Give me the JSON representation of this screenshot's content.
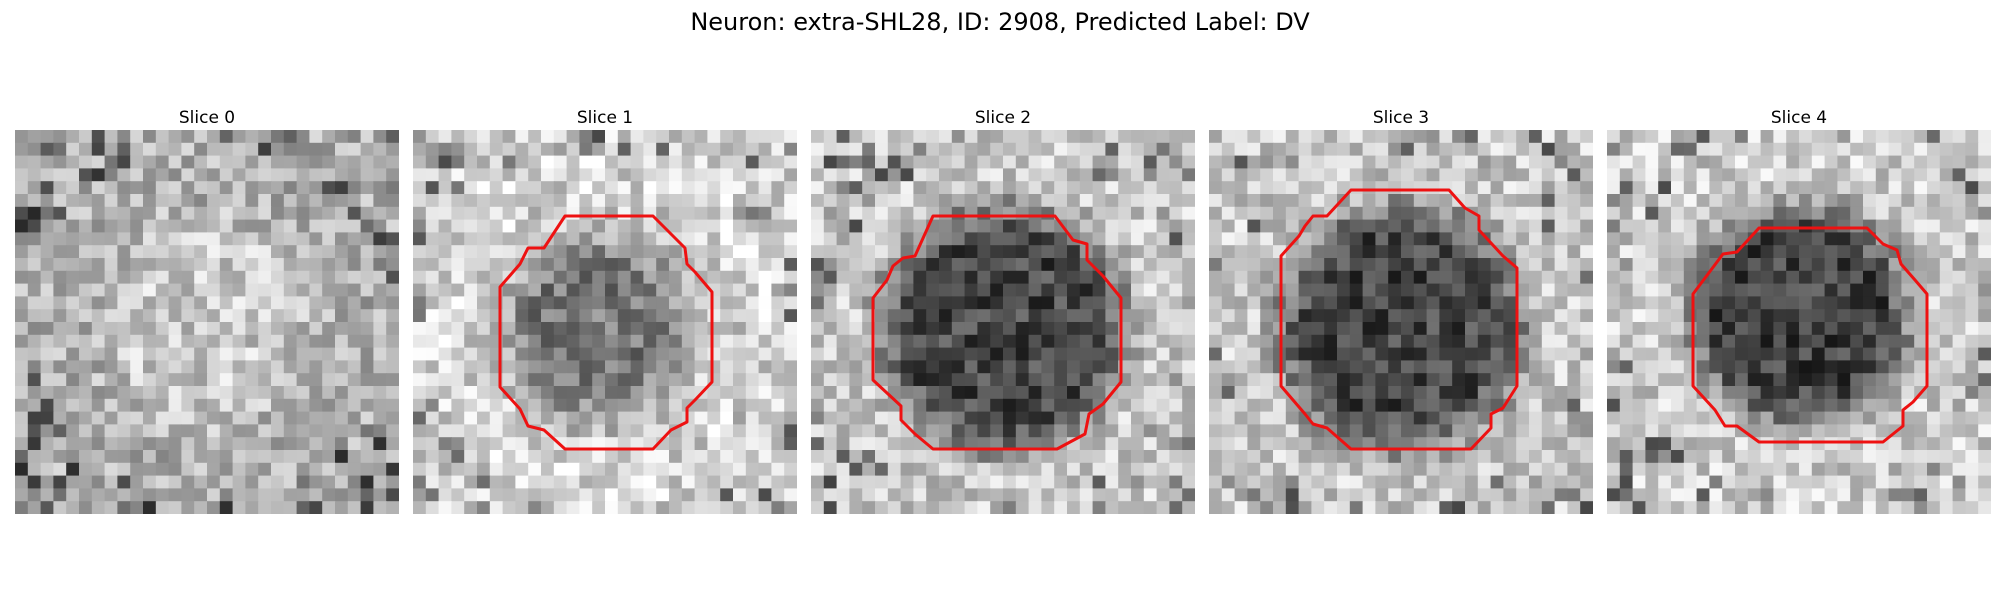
{
  "figure": {
    "title": "Neuron: extra-SHL28, ID: 2908, Predicted Label: DV"
  },
  "panels": [
    {
      "title": "Slice 0",
      "has_contour": false,
      "theme": "light-speckle"
    },
    {
      "title": "Slice 1",
      "has_contour": true,
      "theme": "light-ring"
    },
    {
      "title": "Slice 2",
      "has_contour": true,
      "theme": "dark-blob"
    },
    {
      "title": "Slice 3",
      "has_contour": true,
      "theme": "dark-blob"
    },
    {
      "title": "Slice 4",
      "has_contour": true,
      "theme": "dark-blob-upper"
    }
  ],
  "colors": {
    "contour": "#ee1111"
  }
}
